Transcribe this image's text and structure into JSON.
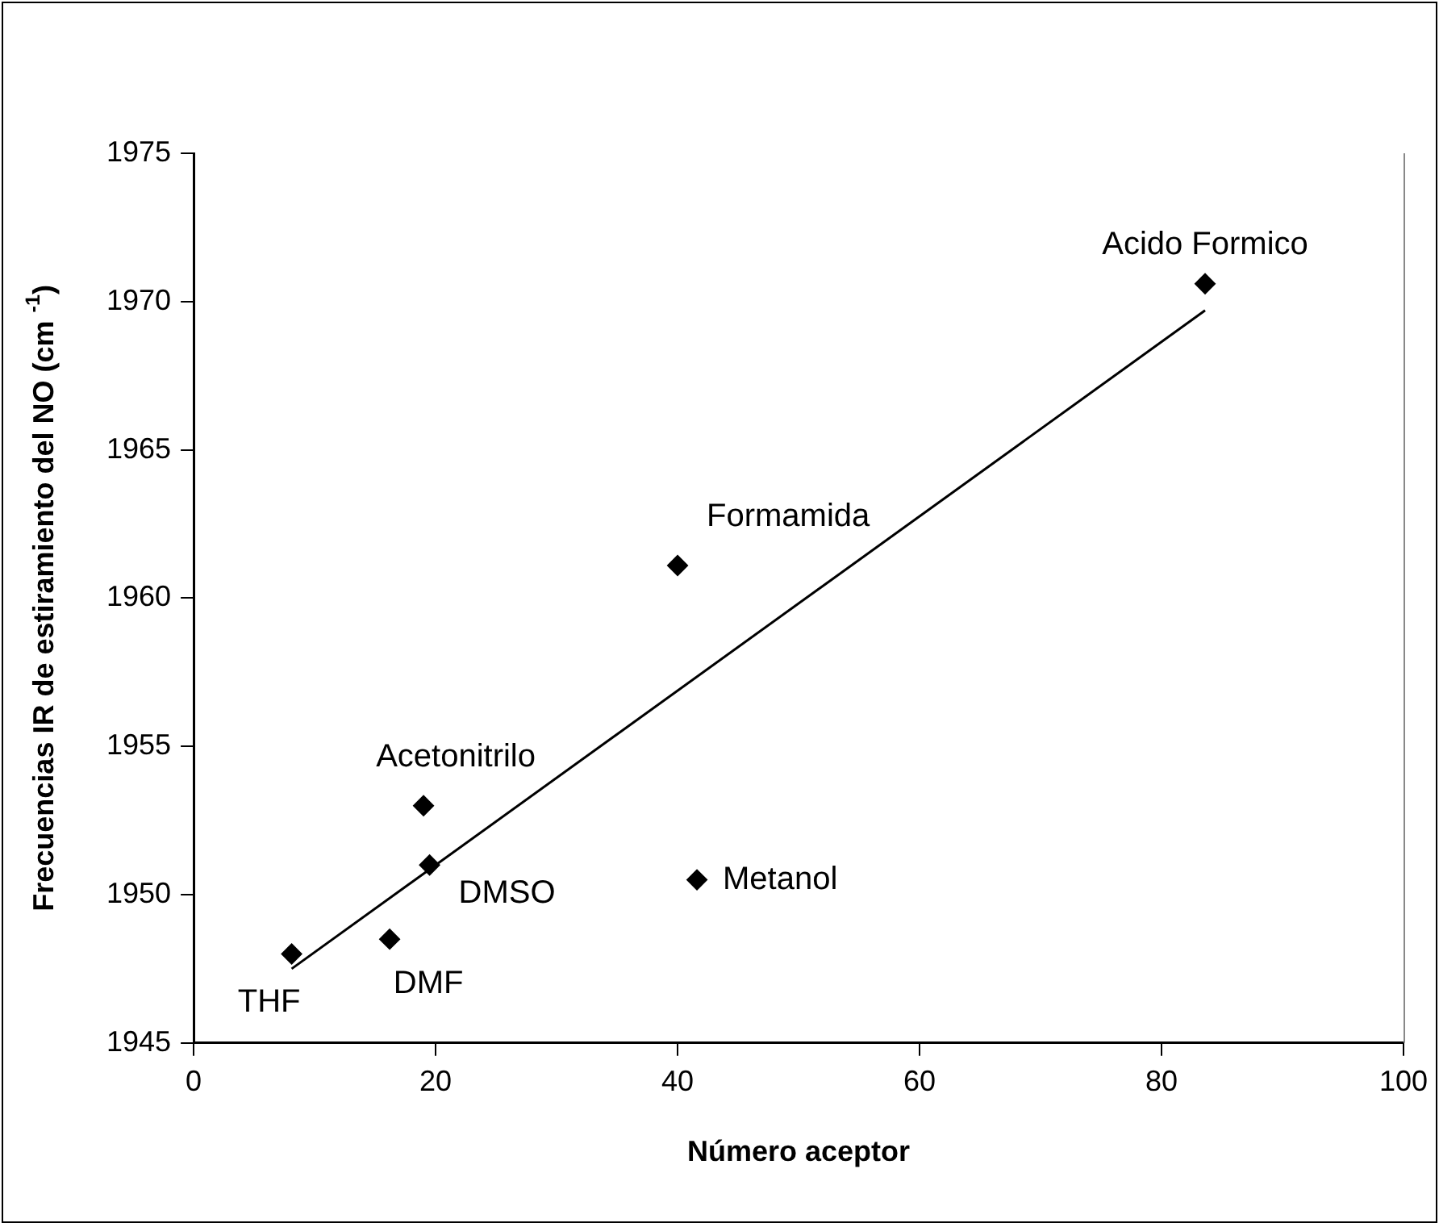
{
  "chart_data": {
    "type": "scatter",
    "xlabel": "Número aceptor",
    "ylabel": "Frecuencias IR de estiramiento del NO (cm $^{-1}$)",
    "xlim": [
      0,
      100
    ],
    "xticks": [
      0,
      20,
      40,
      60,
      80,
      100
    ],
    "ylim": [
      1945,
      1975
    ],
    "yticks": [
      1945,
      1950,
      1955,
      1960,
      1965,
      1970,
      1975
    ],
    "grid": false,
    "legend": false,
    "marker": "diamond",
    "series": [
      {
        "color": "#000000",
        "x": [
          8.1,
          16.2,
          19.0,
          19.5,
          40.0,
          41.6,
          83.6
        ],
        "values": [
          1948.0,
          1948.5,
          1953.0,
          1951.0,
          1961.1,
          1950.5,
          1970.6
        ]
      },
      {
        "type": "line",
        "color": "#000000",
        "marker": "none",
        "line_style": "solid",
        "x": [
          8.1,
          83.6
        ],
        "values": [
          1947.5,
          1969.7
        ]
      }
    ],
    "annotations": [
      {
        "text": "THF",
        "x": 8.1,
        "y": 1948.0
      },
      {
        "text": "DMF",
        "x": 16.2,
        "y": 1948.5
      },
      {
        "text": "Acetonitrilo",
        "x": 19.0,
        "y": 1953.0
      },
      {
        "text": "DMSO",
        "x": 19.5,
        "y": 1951.0
      },
      {
        "text": "Formamida",
        "x": 40.0,
        "y": 1961.1
      },
      {
        "text": "Metanol",
        "x": 41.6,
        "y": 1950.5
      },
      {
        "text": "Acido Formico",
        "x": 83.6,
        "y": 1970.6
      }
    ]
  }
}
